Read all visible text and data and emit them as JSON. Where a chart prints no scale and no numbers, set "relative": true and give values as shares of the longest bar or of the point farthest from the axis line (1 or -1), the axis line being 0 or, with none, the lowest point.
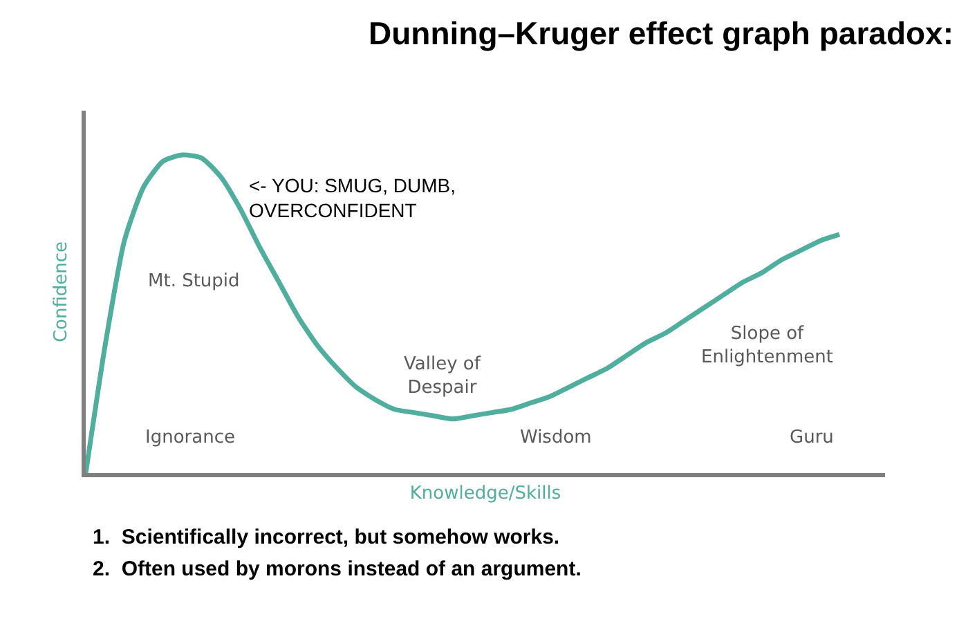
{
  "chart_data": {
    "type": "line",
    "relative": true,
    "title": "Dunning–Kruger effect graph paradox:",
    "xlabel": "Knowledge/Skills",
    "ylabel": "Confidence",
    "categories": [
      null,
      null,
      null,
      null,
      null,
      null,
      null,
      null,
      null,
      null,
      null,
      null,
      null,
      null,
      null,
      null,
      null,
      null,
      null,
      null,
      null,
      null,
      null,
      null,
      null,
      null,
      null,
      null,
      null,
      null,
      null,
      null,
      null,
      null,
      null,
      null,
      null,
      null,
      null,
      null
    ],
    "series": [
      {
        "color": "#4fae9e",
        "values": [
          0,
          0.4,
          0.73,
          0.9,
          0.98,
          1,
          0.99,
          0.93,
          0.83,
          0.71,
          0.6,
          0.49,
          0.4,
          0.33,
          0.27,
          0.23,
          0.2,
          0.19,
          0.18,
          0.17,
          0.18,
          0.19,
          0.2,
          0.22,
          0.24,
          0.27,
          0.3,
          0.33,
          0.37,
          0.41,
          0.44,
          0.48,
          0.52,
          0.56,
          0.6,
          0.63,
          0.67,
          0.7,
          0.73,
          0.75
        ]
      }
    ],
    "marker": "none",
    "line_style": "solid",
    "annotations": [
      "<- YOU: SMUG, DUMB,\nOVERCONFIDENT",
      "Mt. Stupid",
      "Valley of\nDespair",
      "Slope of\nEnlightenment",
      "Ignorance",
      "Wisdom",
      "Guru",
      "1.  Scientifically incorrect, but somehow works.",
      "2.  Often used by morons instead of an argument."
    ]
  }
}
